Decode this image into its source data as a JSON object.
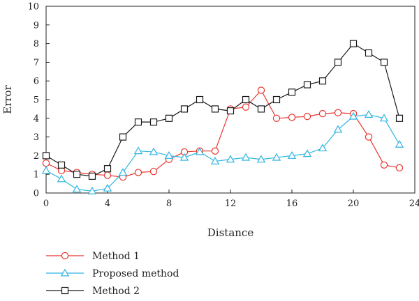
{
  "chart_data": {
    "type": "line",
    "title": "",
    "xlabel": "Distance",
    "ylabel": "Error",
    "xlim": [
      0,
      24
    ],
    "ylim": [
      0,
      10
    ],
    "xticks": [
      0,
      4,
      8,
      12,
      16,
      20,
      24
    ],
    "yticks": [
      0,
      1,
      2,
      3,
      4,
      5,
      6,
      7,
      8,
      9,
      10
    ],
    "grid": false,
    "legend_position": "bottom-left",
    "x": [
      0,
      1,
      2,
      3,
      4,
      5,
      6,
      7,
      8,
      9,
      10,
      11,
      12,
      13,
      14,
      15,
      16,
      17,
      18,
      19,
      20,
      21,
      22,
      23
    ],
    "series": [
      {
        "name": "Method 1",
        "color": "#e8352e",
        "marker": "circle",
        "values": [
          1.6,
          1.2,
          1.1,
          1.0,
          0.95,
          0.85,
          1.1,
          1.15,
          1.8,
          2.2,
          2.25,
          2.25,
          4.5,
          4.6,
          5.5,
          4.0,
          4.05,
          4.1,
          4.25,
          4.3,
          4.25,
          3.0,
          1.5,
          1.35
        ]
      },
      {
        "name": "Proposed method",
        "color": "#2fb5e0",
        "marker": "triangle",
        "values": [
          1.2,
          0.75,
          0.2,
          0.1,
          0.25,
          1.1,
          2.25,
          2.2,
          2.0,
          1.9,
          2.2,
          1.7,
          1.8,
          1.9,
          1.8,
          1.9,
          2.0,
          2.1,
          2.4,
          3.4,
          4.1,
          4.2,
          4.0,
          2.6
        ]
      },
      {
        "name": "Method 2",
        "color": "#1a1a1a",
        "marker": "square",
        "values": [
          2.0,
          1.5,
          1.0,
          0.9,
          1.3,
          3.0,
          3.8,
          3.8,
          4.0,
          4.5,
          5.0,
          4.5,
          4.4,
          5.0,
          4.5,
          5.0,
          5.4,
          5.8,
          6.0,
          7.0,
          8.0,
          7.5,
          7.0,
          4.0
        ]
      }
    ]
  }
}
